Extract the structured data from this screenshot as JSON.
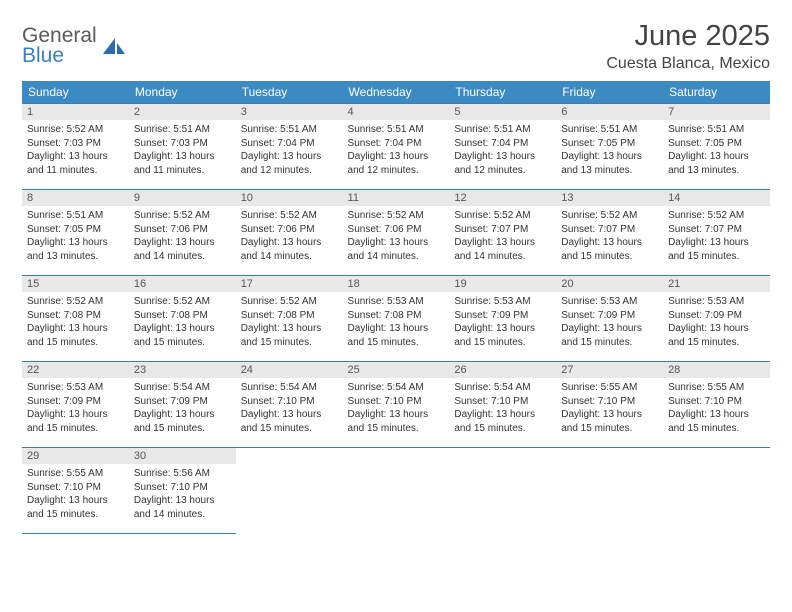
{
  "brand": {
    "line1": "General",
    "line2": "Blue"
  },
  "title": "June 2025",
  "location": "Cuesta Blanca, Mexico",
  "colors": {
    "header_bg": "#3b8ac4",
    "header_text": "#ffffff",
    "daynum_bg": "#e8e8e8",
    "border": "#3b7fa8",
    "logo_blue": "#3b7fc4",
    "text": "#333333"
  },
  "weekdays": [
    "Sunday",
    "Monday",
    "Tuesday",
    "Wednesday",
    "Thursday",
    "Friday",
    "Saturday"
  ],
  "days": [
    {
      "n": "1",
      "sr": "5:52 AM",
      "ss": "7:03 PM",
      "dl": "13 hours and 11 minutes."
    },
    {
      "n": "2",
      "sr": "5:51 AM",
      "ss": "7:03 PM",
      "dl": "13 hours and 11 minutes."
    },
    {
      "n": "3",
      "sr": "5:51 AM",
      "ss": "7:04 PM",
      "dl": "13 hours and 12 minutes."
    },
    {
      "n": "4",
      "sr": "5:51 AM",
      "ss": "7:04 PM",
      "dl": "13 hours and 12 minutes."
    },
    {
      "n": "5",
      "sr": "5:51 AM",
      "ss": "7:04 PM",
      "dl": "13 hours and 12 minutes."
    },
    {
      "n": "6",
      "sr": "5:51 AM",
      "ss": "7:05 PM",
      "dl": "13 hours and 13 minutes."
    },
    {
      "n": "7",
      "sr": "5:51 AM",
      "ss": "7:05 PM",
      "dl": "13 hours and 13 minutes."
    },
    {
      "n": "8",
      "sr": "5:51 AM",
      "ss": "7:05 PM",
      "dl": "13 hours and 13 minutes."
    },
    {
      "n": "9",
      "sr": "5:52 AM",
      "ss": "7:06 PM",
      "dl": "13 hours and 14 minutes."
    },
    {
      "n": "10",
      "sr": "5:52 AM",
      "ss": "7:06 PM",
      "dl": "13 hours and 14 minutes."
    },
    {
      "n": "11",
      "sr": "5:52 AM",
      "ss": "7:06 PM",
      "dl": "13 hours and 14 minutes."
    },
    {
      "n": "12",
      "sr": "5:52 AM",
      "ss": "7:07 PM",
      "dl": "13 hours and 14 minutes."
    },
    {
      "n": "13",
      "sr": "5:52 AM",
      "ss": "7:07 PM",
      "dl": "13 hours and 15 minutes."
    },
    {
      "n": "14",
      "sr": "5:52 AM",
      "ss": "7:07 PM",
      "dl": "13 hours and 15 minutes."
    },
    {
      "n": "15",
      "sr": "5:52 AM",
      "ss": "7:08 PM",
      "dl": "13 hours and 15 minutes."
    },
    {
      "n": "16",
      "sr": "5:52 AM",
      "ss": "7:08 PM",
      "dl": "13 hours and 15 minutes."
    },
    {
      "n": "17",
      "sr": "5:52 AM",
      "ss": "7:08 PM",
      "dl": "13 hours and 15 minutes."
    },
    {
      "n": "18",
      "sr": "5:53 AM",
      "ss": "7:08 PM",
      "dl": "13 hours and 15 minutes."
    },
    {
      "n": "19",
      "sr": "5:53 AM",
      "ss": "7:09 PM",
      "dl": "13 hours and 15 minutes."
    },
    {
      "n": "20",
      "sr": "5:53 AM",
      "ss": "7:09 PM",
      "dl": "13 hours and 15 minutes."
    },
    {
      "n": "21",
      "sr": "5:53 AM",
      "ss": "7:09 PM",
      "dl": "13 hours and 15 minutes."
    },
    {
      "n": "22",
      "sr": "5:53 AM",
      "ss": "7:09 PM",
      "dl": "13 hours and 15 minutes."
    },
    {
      "n": "23",
      "sr": "5:54 AM",
      "ss": "7:09 PM",
      "dl": "13 hours and 15 minutes."
    },
    {
      "n": "24",
      "sr": "5:54 AM",
      "ss": "7:10 PM",
      "dl": "13 hours and 15 minutes."
    },
    {
      "n": "25",
      "sr": "5:54 AM",
      "ss": "7:10 PM",
      "dl": "13 hours and 15 minutes."
    },
    {
      "n": "26",
      "sr": "5:54 AM",
      "ss": "7:10 PM",
      "dl": "13 hours and 15 minutes."
    },
    {
      "n": "27",
      "sr": "5:55 AM",
      "ss": "7:10 PM",
      "dl": "13 hours and 15 minutes."
    },
    {
      "n": "28",
      "sr": "5:55 AM",
      "ss": "7:10 PM",
      "dl": "13 hours and 15 minutes."
    },
    {
      "n": "29",
      "sr": "5:55 AM",
      "ss": "7:10 PM",
      "dl": "13 hours and 15 minutes."
    },
    {
      "n": "30",
      "sr": "5:56 AM",
      "ss": "7:10 PM",
      "dl": "13 hours and 14 minutes."
    }
  ],
  "labels": {
    "sunrise": "Sunrise: ",
    "sunset": "Sunset: ",
    "daylight": "Daylight: "
  }
}
